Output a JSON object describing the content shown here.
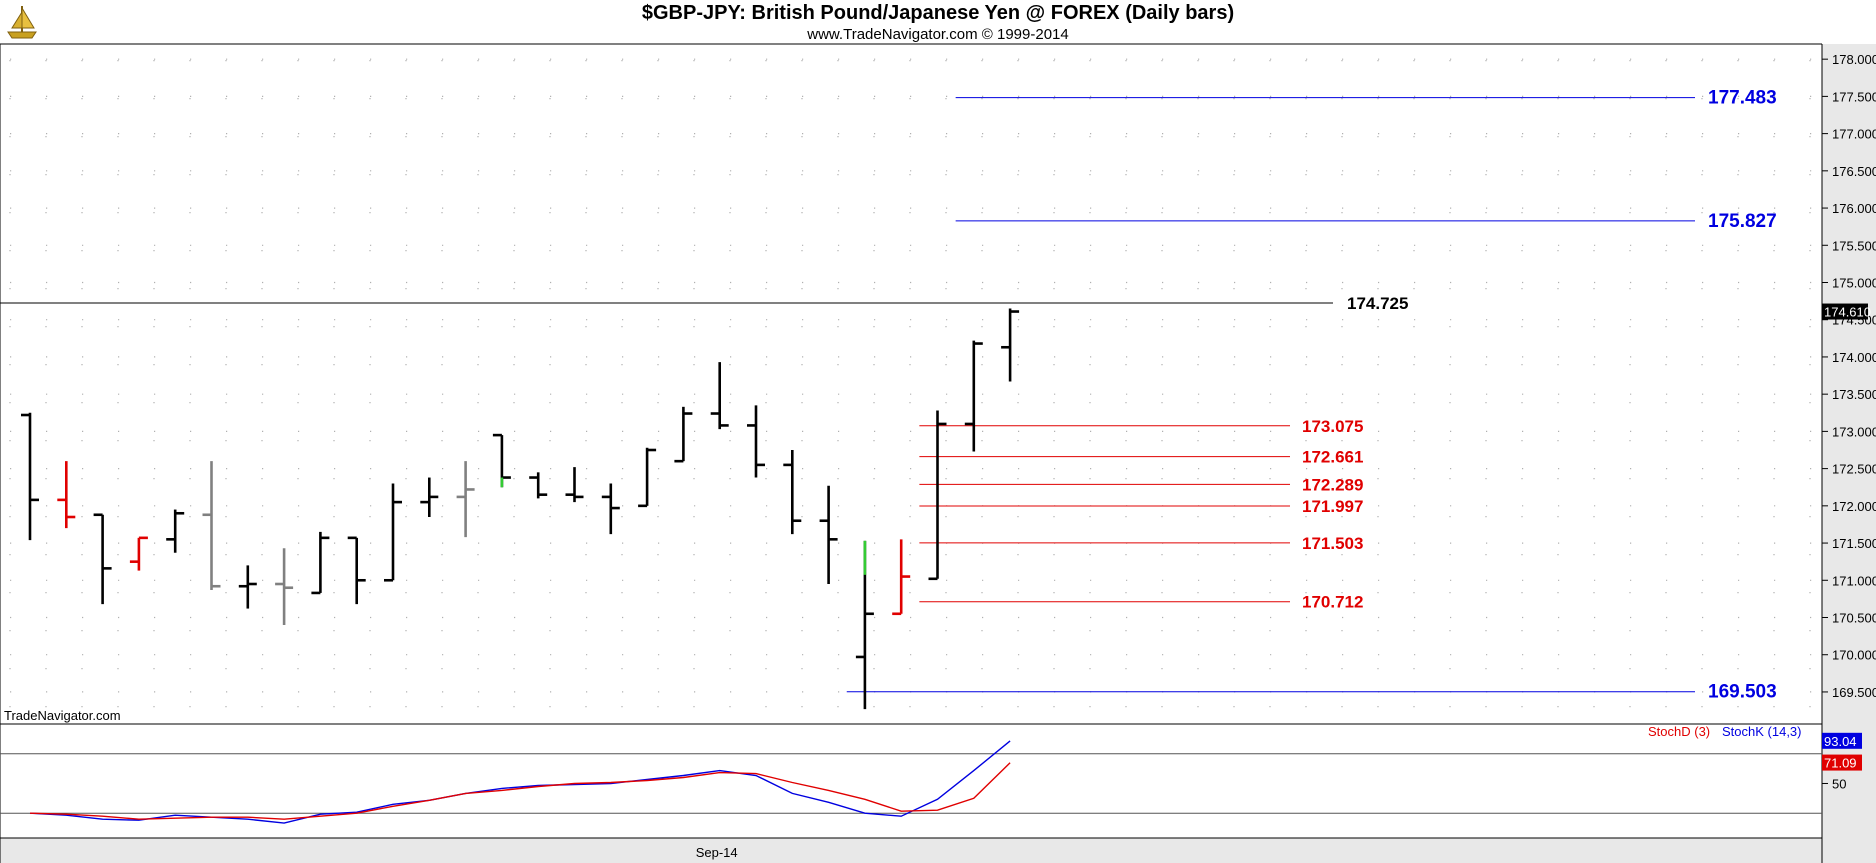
{
  "header": {
    "title": "$GBP-JPY:  British Pound/Japanese Yen @ FOREX  (Daily bars)",
    "subtitle": "www.TradeNavigator.com © 1999-2014",
    "logo_icon": "ship-sextant-icon"
  },
  "watermark": "TradeNavigator.com",
  "colors": {
    "background": "#ffffff",
    "axis_bg": "#e8e8e8",
    "bar_black": "#000000",
    "bar_red": "#e00000",
    "bar_gray": "#808080",
    "bar_green": "#33cc33",
    "level_blue": "#0000e0",
    "level_red": "#e00000",
    "level_black": "#000000",
    "stoch_k": "#0000e0",
    "stoch_d": "#e00000",
    "grid_dot": "#b0b0b0"
  },
  "chart_data": [
    {
      "type": "ohlc",
      "title": "$GBP-JPY:  British Pound/Japanese Yen @ FOREX  (Daily bars)",
      "ylim": [
        169.15,
        178.15
      ],
      "y_ticks": [
        "169.500",
        "170.000",
        "170.500",
        "171.000",
        "171.500",
        "172.000",
        "172.500",
        "173.000",
        "173.500",
        "174.000",
        "174.500",
        "175.000",
        "175.500",
        "176.000",
        "176.500",
        "177.000",
        "177.500",
        "178.000"
      ],
      "x_label": "Sep-14",
      "x_label_bar_index": 19,
      "last_price": "174.610",
      "bars": [
        {
          "o": 173.22,
          "h": 173.25,
          "l": 171.54,
          "c": 172.08,
          "color": "black"
        },
        {
          "o": 172.08,
          "h": 172.6,
          "l": 171.7,
          "c": 171.85,
          "color": "red"
        },
        {
          "o": 171.88,
          "h": 171.88,
          "l": 170.68,
          "c": 171.16,
          "color": "black"
        },
        {
          "o": 171.25,
          "h": 171.57,
          "l": 171.13,
          "c": 171.57,
          "color": "red"
        },
        {
          "o": 171.55,
          "h": 171.95,
          "l": 171.37,
          "c": 171.9,
          "color": "black"
        },
        {
          "o": 171.88,
          "h": 172.6,
          "l": 170.87,
          "c": 170.92,
          "color": "gray"
        },
        {
          "o": 170.92,
          "h": 171.2,
          "l": 170.62,
          "c": 170.95,
          "color": "black"
        },
        {
          "o": 170.95,
          "h": 171.43,
          "l": 170.4,
          "c": 170.9,
          "color": "gray"
        },
        {
          "o": 170.83,
          "h": 171.65,
          "l": 170.83,
          "c": 171.57,
          "color": "black"
        },
        {
          "o": 171.57,
          "h": 171.57,
          "l": 170.68,
          "c": 171.0,
          "color": "black"
        },
        {
          "o": 171.0,
          "h": 172.3,
          "l": 171.0,
          "c": 172.05,
          "color": "black"
        },
        {
          "o": 172.05,
          "h": 172.38,
          "l": 171.85,
          "c": 172.12,
          "color": "black"
        },
        {
          "o": 172.12,
          "h": 172.6,
          "l": 171.58,
          "c": 172.22,
          "color": "gray"
        },
        {
          "o": 172.95,
          "h": 172.95,
          "l": 172.25,
          "c": 172.38,
          "color": "black",
          "green_low": true
        },
        {
          "o": 172.38,
          "h": 172.45,
          "l": 172.1,
          "c": 172.15,
          "color": "black"
        },
        {
          "o": 172.15,
          "h": 172.52,
          "l": 172.05,
          "c": 172.12,
          "color": "black"
        },
        {
          "o": 172.12,
          "h": 172.3,
          "l": 171.62,
          "c": 171.97,
          "color": "black"
        },
        {
          "o": 172.0,
          "h": 172.78,
          "l": 172.0,
          "c": 172.75,
          "color": "black"
        },
        {
          "o": 172.6,
          "h": 173.33,
          "l": 172.6,
          "c": 173.24,
          "color": "black"
        },
        {
          "o": 173.24,
          "h": 173.93,
          "l": 173.03,
          "c": 173.08,
          "color": "black"
        },
        {
          "o": 173.08,
          "h": 173.35,
          "l": 172.38,
          "c": 172.55,
          "color": "black"
        },
        {
          "o": 172.55,
          "h": 172.75,
          "l": 171.62,
          "c": 171.8,
          "color": "black"
        },
        {
          "o": 171.8,
          "h": 172.27,
          "l": 170.95,
          "c": 171.55,
          "color": "black"
        },
        {
          "o": 169.97,
          "h": 171.53,
          "l": 169.27,
          "c": 170.55,
          "color": "black",
          "green_high": true
        },
        {
          "o": 170.55,
          "h": 171.55,
          "l": 170.55,
          "c": 171.05,
          "color": "red"
        },
        {
          "o": 171.02,
          "h": 173.28,
          "l": 171.02,
          "c": 173.1,
          "color": "black"
        },
        {
          "o": 173.1,
          "h": 174.22,
          "l": 172.73,
          "c": 174.18,
          "color": "black"
        },
        {
          "o": 174.13,
          "h": 174.65,
          "l": 173.67,
          "c": 174.61,
          "color": "black"
        }
      ],
      "levels": [
        {
          "value": 177.483,
          "label": "177.483",
          "color": "blue",
          "start_bar": 25.5
        },
        {
          "value": 175.827,
          "label": "175.827",
          "color": "blue",
          "start_bar": 25.5
        },
        {
          "value": 174.725,
          "label": "174.725",
          "color": "black",
          "start_bar": -1
        },
        {
          "value": 173.075,
          "label": "173.075",
          "color": "red",
          "start_bar": 24.5
        },
        {
          "value": 172.661,
          "label": "172.661",
          "color": "red",
          "start_bar": 24.5
        },
        {
          "value": 172.289,
          "label": "172.289",
          "color": "red",
          "start_bar": 24.5
        },
        {
          "value": 171.997,
          "label": "171.997",
          "color": "red",
          "start_bar": 24.5
        },
        {
          "value": 171.503,
          "label": "171.503",
          "color": "red",
          "start_bar": 24.5
        },
        {
          "value": 170.712,
          "label": "170.712",
          "color": "red",
          "start_bar": 24.5
        },
        {
          "value": 169.503,
          "label": "169.503",
          "color": "blue",
          "start_bar": 22.5
        }
      ]
    },
    {
      "type": "line",
      "ylim": [
        -5,
        110
      ],
      "y_ticks": [
        "50"
      ],
      "ref_lines": [
        80,
        20
      ],
      "series": [
        {
          "name": "StochK (14,3)",
          "color": "blue",
          "last": "93.04",
          "values": [
            20,
            18,
            14,
            13,
            18,
            16,
            14,
            10,
            19,
            21,
            29,
            33,
            40,
            45,
            48,
            49,
            50,
            54,
            58,
            63,
            58,
            40,
            31,
            20,
            17,
            34,
            63,
            93
          ]
        },
        {
          "name": "StochD (3)",
          "color": "red",
          "last": "71.09",
          "values": [
            20,
            19,
            17,
            14,
            15,
            16,
            16,
            14,
            17,
            20,
            27,
            33,
            40,
            43,
            47,
            50,
            51,
            53,
            56,
            61,
            60,
            51,
            43,
            34,
            22,
            23,
            35,
            71
          ]
        }
      ]
    }
  ],
  "legend": {
    "stoch_d": "StochD (3)",
    "stoch_k": "StochK (14,3)"
  }
}
